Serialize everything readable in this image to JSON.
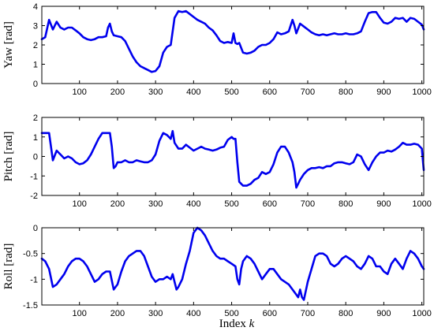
{
  "chart_data": {
    "type": "line",
    "xlabel": "Index",
    "xlabel_var": "k",
    "shared_xlim": [
      1,
      1005
    ],
    "xticks": [
      100,
      200,
      300,
      400,
      500,
      600,
      700,
      800,
      900,
      1000
    ],
    "colors": {
      "line": "#0000ee",
      "axis": "#000000"
    },
    "grid": false,
    "subplots": [
      {
        "id": "yaw",
        "ylabel": "Yaw [rad]",
        "ylim": [
          0,
          4
        ],
        "yticks": [
          0,
          1,
          2,
          3,
          4
        ],
        "series": [
          {
            "x": [
              1,
              10,
              20,
              30,
              40,
              50,
              60,
              70,
              80,
              90,
              100,
              110,
              120,
              130,
              140,
              150,
              160,
              170,
              175,
              180,
              185,
              190,
              200,
              210,
              220,
              230,
              240,
              250,
              260,
              270,
              280,
              290,
              300,
              310,
              320,
              330,
              340,
              350,
              360,
              370,
              380,
              390,
              400,
              410,
              420,
              430,
              440,
              450,
              460,
              470,
              480,
              490,
              500,
              505,
              510,
              515,
              520,
              530,
              540,
              550,
              560,
              570,
              580,
              590,
              600,
              610,
              620,
              630,
              640,
              650,
              660,
              665,
              670,
              675,
              680,
              690,
              700,
              710,
              720,
              730,
              740,
              750,
              760,
              770,
              780,
              790,
              800,
              810,
              820,
              830,
              840,
              850,
              860,
              870,
              880,
              890,
              900,
              910,
              920,
              930,
              940,
              950,
              960,
              970,
              980,
              990,
              1000,
              1005
            ],
            "y": [
              2.3,
              2.4,
              3.3,
              2.8,
              3.2,
              2.9,
              2.8,
              2.9,
              2.9,
              2.75,
              2.6,
              2.4,
              2.3,
              2.25,
              2.3,
              2.4,
              2.4,
              2.45,
              2.9,
              3.1,
              2.7,
              2.5,
              2.45,
              2.4,
              2.2,
              1.8,
              1.4,
              1.1,
              0.9,
              0.8,
              0.7,
              0.6,
              0.65,
              0.9,
              1.6,
              1.9,
              2.0,
              3.4,
              3.75,
              3.7,
              3.75,
              3.6,
              3.45,
              3.3,
              3.2,
              3.1,
              2.9,
              2.75,
              2.5,
              2.2,
              2.1,
              2.15,
              2.1,
              2.6,
              2.1,
              2.05,
              2.1,
              1.6,
              1.55,
              1.6,
              1.7,
              1.9,
              2.0,
              2.0,
              2.1,
              2.3,
              2.65,
              2.55,
              2.6,
              2.7,
              3.3,
              3.0,
              2.6,
              2.85,
              3.1,
              2.95,
              2.8,
              2.65,
              2.55,
              2.5,
              2.55,
              2.5,
              2.55,
              2.6,
              2.55,
              2.55,
              2.6,
              2.55,
              2.55,
              2.6,
              2.7,
              3.2,
              3.65,
              3.7,
              3.7,
              3.4,
              3.15,
              3.1,
              3.2,
              3.4,
              3.35,
              3.4,
              3.2,
              3.4,
              3.35,
              3.2,
              3.05,
              2.8
            ]
          }
        ]
      },
      {
        "id": "pitch",
        "ylabel": "Pitch [rad]",
        "ylim": [
          -2,
          2
        ],
        "yticks": [
          -2,
          -1,
          0,
          1,
          2
        ],
        "series": [
          {
            "x": [
              1,
              10,
              20,
              25,
              30,
              40,
              50,
              60,
              70,
              80,
              90,
              100,
              110,
              120,
              130,
              140,
              150,
              160,
              170,
              180,
              185,
              190,
              195,
              200,
              210,
              220,
              230,
              240,
              250,
              260,
              270,
              280,
              290,
              300,
              310,
              320,
              330,
              340,
              345,
              350,
              360,
              370,
              380,
              390,
              400,
              410,
              420,
              430,
              440,
              450,
              460,
              470,
              480,
              490,
              500,
              505,
              510,
              515,
              520,
              530,
              540,
              550,
              560,
              570,
              580,
              590,
              600,
              610,
              620,
              630,
              640,
              650,
              660,
              665,
              670,
              675,
              680,
              690,
              700,
              710,
              720,
              730,
              740,
              750,
              760,
              770,
              780,
              790,
              800,
              810,
              820,
              830,
              840,
              850,
              860,
              870,
              880,
              890,
              900,
              910,
              920,
              930,
              940,
              950,
              960,
              970,
              980,
              990,
              1000,
              1005
            ],
            "y": [
              1.2,
              1.2,
              1.2,
              0.5,
              -0.2,
              0.3,
              0.1,
              -0.1,
              0.0,
              -0.1,
              -0.3,
              -0.4,
              -0.35,
              -0.2,
              0.1,
              0.5,
              0.9,
              1.2,
              1.2,
              1.2,
              0.5,
              -0.6,
              -0.5,
              -0.3,
              -0.3,
              -0.2,
              -0.3,
              -0.3,
              -0.2,
              -0.25,
              -0.3,
              -0.3,
              -0.2,
              0.1,
              0.8,
              1.2,
              1.1,
              0.9,
              1.3,
              0.7,
              0.4,
              0.4,
              0.6,
              0.45,
              0.3,
              0.4,
              0.5,
              0.4,
              0.35,
              0.3,
              0.35,
              0.45,
              0.5,
              0.85,
              1.0,
              0.9,
              0.9,
              -0.3,
              -1.3,
              -1.5,
              -1.5,
              -1.4,
              -1.2,
              -1.1,
              -0.8,
              -0.9,
              -0.8,
              -0.4,
              0.2,
              0.5,
              0.5,
              0.2,
              -0.3,
              -0.8,
              -1.6,
              -1.4,
              -1.2,
              -0.9,
              -0.7,
              -0.6,
              -0.6,
              -0.55,
              -0.6,
              -0.5,
              -0.5,
              -0.35,
              -0.3,
              -0.3,
              -0.35,
              -0.4,
              -0.3,
              0.1,
              0.0,
              -0.4,
              -0.7,
              -0.3,
              0.0,
              0.2,
              0.2,
              0.3,
              0.25,
              0.35,
              0.5,
              0.7,
              0.6,
              0.6,
              0.65,
              0.6,
              0.4,
              -0.7
            ]
          }
        ]
      },
      {
        "id": "roll",
        "ylabel": "Roll [rad]",
        "ylim": [
          -1.5,
          0
        ],
        "yticks": [
          -1.5,
          -1,
          -0.5,
          0
        ],
        "series": [
          {
            "x": [
              1,
              10,
              20,
              30,
              40,
              50,
              60,
              70,
              80,
              90,
              100,
              110,
              120,
              130,
              140,
              150,
              160,
              170,
              180,
              190,
              200,
              210,
              220,
              230,
              240,
              250,
              260,
              270,
              280,
              290,
              300,
              310,
              320,
              330,
              340,
              345,
              350,
              355,
              360,
              370,
              380,
              390,
              400,
              410,
              420,
              430,
              440,
              450,
              460,
              470,
              480,
              490,
              500,
              510,
              515,
              520,
              525,
              530,
              540,
              550,
              560,
              570,
              580,
              590,
              600,
              610,
              620,
              630,
              640,
              650,
              660,
              670,
              675,
              680,
              685,
              690,
              700,
              710,
              720,
              730,
              740,
              750,
              760,
              770,
              780,
              790,
              800,
              810,
              820,
              830,
              840,
              850,
              860,
              870,
              880,
              890,
              900,
              910,
              920,
              930,
              940,
              950,
              960,
              970,
              980,
              990,
              1000,
              1005
            ],
            "y": [
              -0.6,
              -0.65,
              -0.8,
              -1.15,
              -1.1,
              -1.0,
              -0.9,
              -0.75,
              -0.65,
              -0.6,
              -0.6,
              -0.65,
              -0.75,
              -0.9,
              -1.05,
              -1.0,
              -0.9,
              -0.85,
              -0.85,
              -1.2,
              -1.1,
              -0.85,
              -0.65,
              -0.55,
              -0.5,
              -0.45,
              -0.45,
              -0.55,
              -0.75,
              -0.95,
              -1.05,
              -1.0,
              -1.0,
              -0.95,
              -1.0,
              -0.9,
              -1.05,
              -1.2,
              -1.15,
              -1.0,
              -0.7,
              -0.45,
              -0.1,
              0.0,
              -0.05,
              -0.15,
              -0.3,
              -0.45,
              -0.55,
              -0.6,
              -0.6,
              -0.65,
              -0.7,
              -0.75,
              -1.0,
              -1.1,
              -0.8,
              -0.65,
              -0.55,
              -0.6,
              -0.7,
              -0.85,
              -1.0,
              -0.9,
              -0.8,
              -0.8,
              -0.9,
              -1.0,
              -1.05,
              -1.1,
              -1.2,
              -1.3,
              -1.35,
              -1.2,
              -1.35,
              -1.4,
              -1.05,
              -0.8,
              -0.55,
              -0.5,
              -0.5,
              -0.55,
              -0.7,
              -0.75,
              -0.7,
              -0.6,
              -0.55,
              -0.6,
              -0.65,
              -0.75,
              -0.8,
              -0.7,
              -0.55,
              -0.6,
              -0.75,
              -0.75,
              -0.85,
              -0.9,
              -0.7,
              -0.6,
              -0.7,
              -0.8,
              -0.6,
              -0.45,
              -0.5,
              -0.6,
              -0.75,
              -0.8
            ]
          }
        ]
      }
    ]
  }
}
